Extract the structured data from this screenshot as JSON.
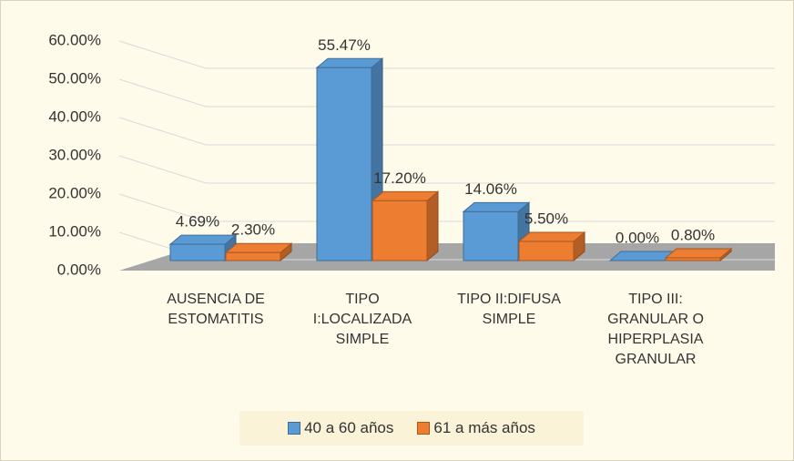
{
  "chart_data": {
    "type": "bar",
    "categories": [
      "AUSENCIA DE ESTOMATITIS",
      "TIPO I:LOCALIZADA SIMPLE",
      "TIPO II:DIFUSA SIMPLE",
      "TIPO III: GRANULAR O HIPERPLASIA GRANULAR"
    ],
    "series": [
      {
        "name": "40 a 60 años",
        "color": "#5b9bd5",
        "values": [
          4.69,
          55.47,
          14.06,
          0.0
        ],
        "value_labels": [
          "4.69%",
          "55.47%",
          "14.06%",
          "0.00%"
        ]
      },
      {
        "name": "61 a más años",
        "color": "#ed7d31",
        "values": [
          2.3,
          17.2,
          5.5,
          0.8
        ],
        "value_labels": [
          "2.30%",
          "17.20%",
          "5.50%",
          "0.80%"
        ]
      }
    ],
    "ylim": [
      0,
      60
    ],
    "yticks": [
      {
        "value": 0,
        "label": "0.00%"
      },
      {
        "value": 10,
        "label": "10.00%"
      },
      {
        "value": 20,
        "label": "20.00%"
      },
      {
        "value": 30,
        "label": "30.00%"
      },
      {
        "value": 40,
        "label": "40.00%"
      },
      {
        "value": 50,
        "label": "50.00%"
      },
      {
        "value": 60,
        "label": "60.00%"
      }
    ],
    "grid": true,
    "legend": "bottom"
  }
}
